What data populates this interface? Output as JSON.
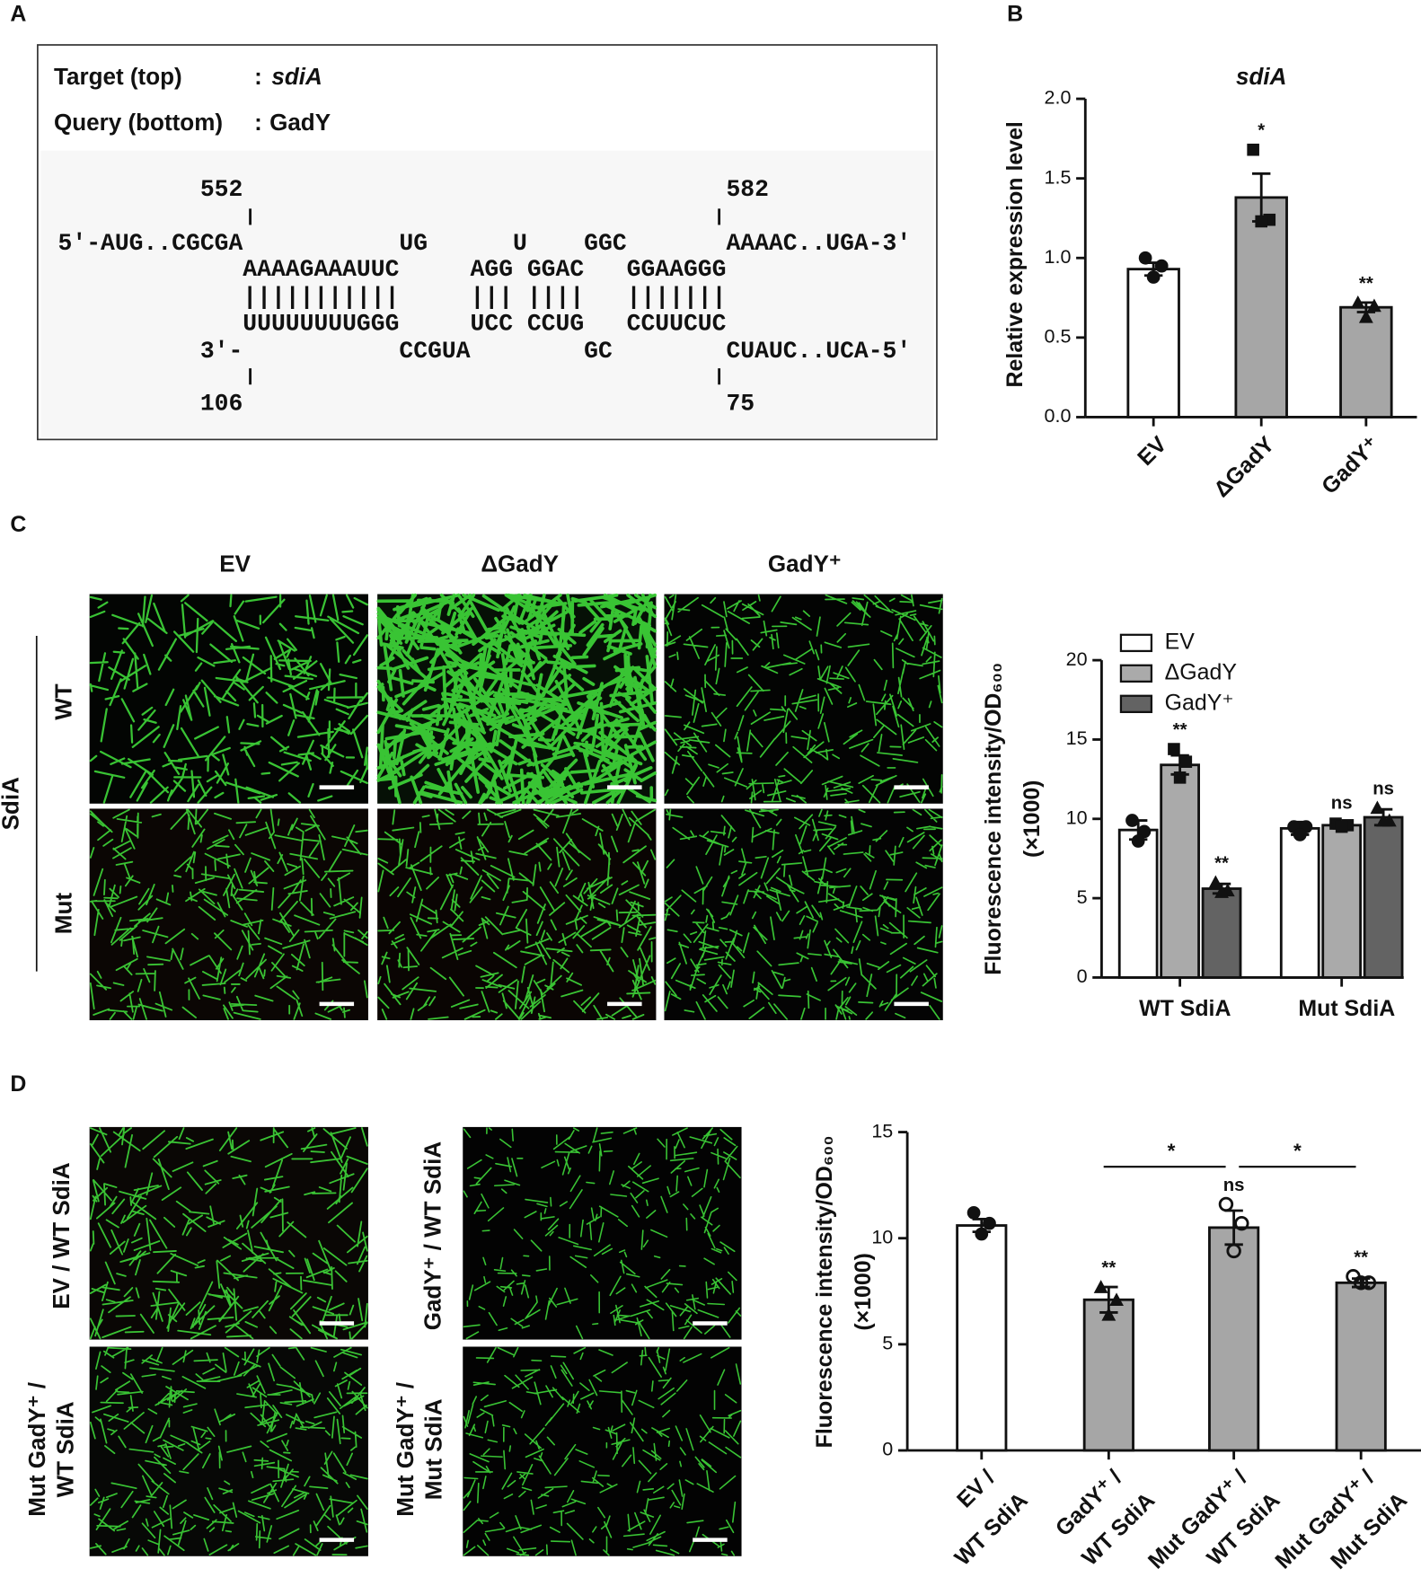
{
  "panel_labels": [
    "A",
    "B",
    "C",
    "D"
  ],
  "alignment": {
    "target_label": "Target (top)",
    "query_label": "Query (bottom)",
    "separator": ":",
    "target": "sdiA",
    "query": "GadY",
    "top_numbers": "          552                                  582",
    "rows": [
      "5'-AUG..CGCGA           UG      U    GGC       AAAAC..UGA-3'",
      "             AAAAGAAAUUC     AGG GGAC   GGAAGGG",
      "             |||||||||||     ||| ||||   |||||||",
      "             UUUUUUUUGGG     UCC CCUG   CCUUCUC",
      "          3'-           CCGUA        GC        CUAUC..UCA-5'"
    ],
    "bottom_numbers": "          106                                  75"
  },
  "images": {
    "c_columns": [
      "EV",
      "ΔGadY",
      "GadY⁺"
    ],
    "c_rows": [
      "WT",
      "Mut"
    ],
    "c_group": "SdiA",
    "d_labels": [
      [
        "EV / WT SdiA"
      ],
      [
        "GadY⁺ / WT SdiA"
      ],
      [
        "Mut GadY⁺ /",
        "WT SdiA"
      ],
      [
        "Mut GadY⁺ /",
        "Mut SdiA"
      ]
    ]
  },
  "chart_data": [
    {
      "type": "bar",
      "title": "sdiA",
      "y_label": "Relative expression level",
      "categories": [
        "EV",
        "ΔGadY",
        "GadY⁺"
      ],
      "values": [
        0.93,
        1.38,
        0.69
      ],
      "errors": [
        0.04,
        0.15,
        0.03
      ],
      "points": [
        [
          1.0,
          0.95,
          0.88
        ],
        [
          1.68,
          1.24,
          1.23
        ],
        [
          0.72,
          0.7,
          0.63
        ]
      ],
      "markers": [
        "circle",
        "square",
        "triangle"
      ],
      "colors": [
        "#ffffff",
        "#a6a6a6",
        "#a6a6a6"
      ],
      "annotations": [
        null,
        "*",
        "**"
      ],
      "ylim": [
        0,
        2
      ],
      "yticks": [
        {
          "value": 0,
          "label": "0.0"
        },
        {
          "value": 0.5,
          "label": "0.5"
        },
        {
          "value": 1,
          "label": "1.0"
        },
        {
          "value": 1.5,
          "label": "1.5"
        },
        {
          "value": 2,
          "label": "2.0"
        }
      ]
    },
    {
      "type": "grouped_bar",
      "y_label": "Fluorescence intensity/OD₆₀₀",
      "y_label2": "(×1000)",
      "categories": [
        "WT SdiA",
        "Mut SdiA"
      ],
      "series": [
        {
          "name": "EV",
          "color": "#ffffff",
          "marker": "circle",
          "values": [
            9.3,
            9.4
          ],
          "errors": [
            0.6,
            0.4
          ],
          "points": [
            [
              9.9,
              9.2,
              8.6
            ],
            [
              9.5,
              9.5,
              9.0
            ]
          ],
          "annotations": [
            null,
            null
          ]
        },
        {
          "name": "ΔGadY",
          "color": "#aaaaaa",
          "marker": "square",
          "values": [
            13.4,
            9.6
          ],
          "errors": [
            0.6,
            0.2
          ],
          "points": [
            [
              14.4,
              13.6,
              12.6
            ],
            [
              9.7,
              9.6,
              9.5
            ]
          ],
          "annotations": [
            "**",
            "ns"
          ]
        },
        {
          "name": "GadY⁺",
          "color": "#636363",
          "marker": "triangle",
          "values": [
            5.6,
            10.1
          ],
          "errors": [
            0.3,
            0.5
          ],
          "points": [
            [
              6.0,
              5.5,
              5.4
            ],
            [
              10.7,
              9.9,
              9.9
            ]
          ],
          "annotations": [
            "**",
            "ns"
          ]
        }
      ],
      "legend": "top-left",
      "ylim": [
        0,
        20
      ],
      "yticks": [
        0,
        5,
        10,
        15,
        20
      ]
    },
    {
      "type": "bar",
      "y_label": "Fluorescence intensity/OD₆₀₀",
      "y_label2": "(×1000)",
      "categories": [
        [
          "EV /",
          "WT SdiA"
        ],
        [
          "GadY⁺ /",
          "WT SdiA"
        ],
        [
          "Mut GadY⁺ /",
          "WT SdiA"
        ],
        [
          "Mut GadY⁺ /",
          "Mut SdiA"
        ]
      ],
      "values": [
        10.6,
        7.1,
        10.5,
        7.9
      ],
      "errors": [
        0.3,
        0.6,
        0.8,
        0.2
      ],
      "points": [
        [
          11.2,
          10.7,
          10.2
        ],
        [
          7.7,
          7.1,
          6.4
        ],
        [
          11.6,
          10.7,
          9.4
        ],
        [
          8.2,
          7.9,
          7.9
        ]
      ],
      "markers": [
        "circle",
        "triangle",
        "open-circle",
        "open-circle"
      ],
      "colors": [
        "#ffffff",
        "#a6a6a6",
        "#a6a6a6",
        "#a6a6a6"
      ],
      "annotations": [
        null,
        "**",
        "ns",
        "**"
      ],
      "bracket_labels": [
        "*",
        "*"
      ],
      "ylim": [
        0,
        15
      ],
      "yticks": [
        0,
        5,
        10,
        15
      ]
    }
  ]
}
